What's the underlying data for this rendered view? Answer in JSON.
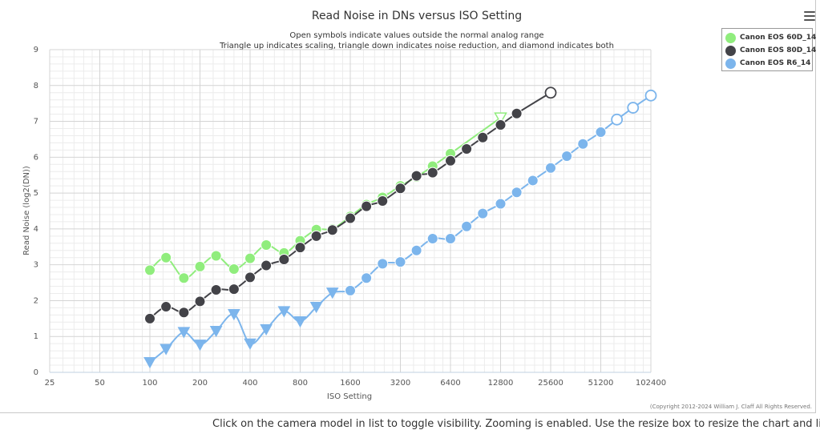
{
  "chart_data": {
    "type": "line",
    "title": "Read Noise in DNs versus ISO Setting",
    "subtitle_lines": [
      "Open symbols indicate values outside the normal analog range",
      "Triangle up indicates scaling, triangle down indicates noise reduction, and diamond indicates both"
    ],
    "xlabel": "ISO Setting",
    "ylabel": "Read Noise (log2(DN))",
    "x_scale": "log2",
    "x_ticks": [
      "25",
      "50",
      "100",
      "200",
      "400",
      "800",
      "1600",
      "3200",
      "6400",
      "12800",
      "25600",
      "51200",
      "102400"
    ],
    "x_range": [
      25,
      102400
    ],
    "y_ticks": [
      "0",
      "1",
      "2",
      "3",
      "4",
      "5",
      "6",
      "7",
      "8",
      "9"
    ],
    "ylim": [
      0,
      9
    ],
    "grid": true,
    "legend_position": "top-right",
    "series": [
      {
        "name": "Canon EOS 60D_14",
        "color": "#90ed7d",
        "x": [
          100,
          125,
          160,
          200,
          250,
          320,
          400,
          500,
          640,
          800,
          1000,
          1250,
          1600,
          2000,
          2500,
          3200,
          4000,
          5000,
          6400,
          12800
        ],
        "y": [
          2.85,
          3.2,
          2.63,
          2.95,
          3.25,
          2.88,
          3.18,
          3.55,
          3.33,
          3.67,
          3.98,
          4.0,
          4.35,
          4.68,
          4.88,
          5.2,
          5.45,
          5.75,
          6.1,
          7.1
        ],
        "marker": [
          "circle",
          "circle",
          "circle",
          "circle",
          "circle",
          "circle",
          "circle",
          "circle",
          "circle",
          "circle",
          "circle",
          "circle",
          "circle",
          "circle",
          "circle",
          "circle",
          "circle",
          "circle",
          "circle",
          "triangle-down-open"
        ]
      },
      {
        "name": "Canon EOS 80D_14",
        "color": "#434348",
        "x": [
          100,
          125,
          160,
          200,
          250,
          320,
          400,
          500,
          640,
          800,
          1000,
          1250,
          1600,
          2000,
          2500,
          3200,
          4000,
          5000,
          6400,
          8000,
          10000,
          12800,
          16000,
          25600
        ],
        "y": [
          1.5,
          1.83,
          1.67,
          1.98,
          2.3,
          2.32,
          2.65,
          2.98,
          3.15,
          3.48,
          3.8,
          3.97,
          4.3,
          4.63,
          4.78,
          5.13,
          5.48,
          5.57,
          5.9,
          6.23,
          6.55,
          6.9,
          7.22,
          7.8
        ],
        "marker": [
          "circle",
          "circle",
          "circle",
          "circle",
          "circle",
          "circle",
          "circle",
          "circle",
          "circle",
          "circle",
          "circle",
          "circle",
          "circle",
          "circle",
          "circle",
          "circle",
          "circle",
          "circle",
          "circle",
          "circle",
          "circle",
          "circle",
          "circle",
          "circle-open"
        ]
      },
      {
        "name": "Canon EOS R6_14",
        "color": "#7cb5ec",
        "x": [
          100,
          125,
          160,
          200,
          250,
          320,
          400,
          500,
          640,
          800,
          1000,
          1250,
          1600,
          2000,
          2500,
          3200,
          4000,
          5000,
          6400,
          8000,
          10000,
          12800,
          16000,
          20000,
          25600,
          32000,
          40000,
          51200,
          64000,
          80000,
          102400
        ],
        "y": [
          0.28,
          0.65,
          1.12,
          0.77,
          1.15,
          1.62,
          0.8,
          1.2,
          1.7,
          1.42,
          1.82,
          2.22,
          2.28,
          2.63,
          3.03,
          3.08,
          3.4,
          3.73,
          3.73,
          4.07,
          4.43,
          4.7,
          5.02,
          5.35,
          5.7,
          6.03,
          6.37,
          6.7,
          7.05,
          7.38,
          7.72
        ],
        "marker": [
          "triangle-down",
          "triangle-down",
          "triangle-down",
          "triangle-down",
          "triangle-down",
          "triangle-down",
          "triangle-down",
          "triangle-down",
          "triangle-down",
          "triangle-down",
          "triangle-down",
          "triangle-down",
          "circle",
          "circle",
          "circle",
          "circle",
          "circle",
          "circle",
          "circle",
          "circle",
          "circle",
          "circle",
          "circle",
          "circle",
          "circle",
          "circle",
          "circle",
          "circle",
          "circle-open",
          "circle-open",
          "circle-open"
        ]
      }
    ],
    "credits": "(Copyright 2012-2024 William J. Claff All Rights Reserved."
  },
  "footer": {
    "text": "Click on the camera model in list to toggle visibility. Zooming is enabled. Use the resize box to resize the chart and list."
  },
  "menu": {
    "icon": "hamburger-menu-icon"
  }
}
